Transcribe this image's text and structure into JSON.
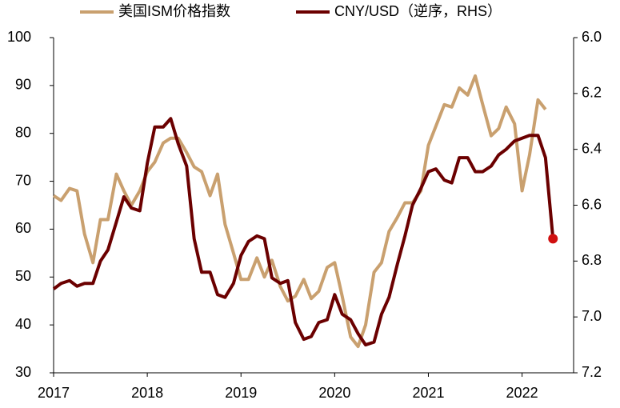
{
  "chart_data": {
    "type": "line",
    "x": [
      2017.0,
      2017.08,
      2017.17,
      2017.25,
      2017.33,
      2017.42,
      2017.5,
      2017.58,
      2017.67,
      2017.75,
      2017.83,
      2017.92,
      2018.0,
      2018.08,
      2018.17,
      2018.25,
      2018.33,
      2018.42,
      2018.5,
      2018.58,
      2018.67,
      2018.75,
      2018.83,
      2018.92,
      2019.0,
      2019.08,
      2019.17,
      2019.25,
      2019.33,
      2019.42,
      2019.5,
      2019.58,
      2019.67,
      2019.75,
      2019.83,
      2019.92,
      2020.0,
      2020.08,
      2020.17,
      2020.25,
      2020.33,
      2020.42,
      2020.5,
      2020.58,
      2020.67,
      2020.75,
      2020.83,
      2020.92,
      2021.0,
      2021.08,
      2021.17,
      2021.25,
      2021.33,
      2021.42,
      2021.5,
      2021.58,
      2021.67,
      2021.75,
      2021.83,
      2021.92,
      2022.0,
      2022.08,
      2022.17,
      2022.25,
      2022.33
    ],
    "xlim": [
      2017,
      2022.55
    ],
    "xticks": [
      2017,
      2018,
      2019,
      2020,
      2021,
      2022
    ],
    "ylim": [
      30,
      100
    ],
    "yticks": [
      30,
      40,
      50,
      60,
      70,
      80,
      90,
      100
    ],
    "y2lim": [
      6.0,
      7.2
    ],
    "y2_inverted": true,
    "y2ticks": [
      {
        "value": 6.0,
        "label": "6.0"
      },
      {
        "value": 6.2,
        "label": "6.2"
      },
      {
        "value": 6.4,
        "label": "6.4"
      },
      {
        "value": 6.6,
        "label": "6.6"
      },
      {
        "value": 6.8,
        "label": "6.8"
      },
      {
        "value": 7.0,
        "label": "7.0"
      },
      {
        "value": 7.2,
        "label": "7.2"
      }
    ],
    "legend": "top",
    "series": [
      {
        "name": "美国ISM价格指数",
        "color": "#c9a06f",
        "values": [
          67,
          66,
          68.5,
          68,
          59,
          53,
          62,
          62,
          71.5,
          68,
          65,
          68,
          72,
          74,
          78,
          79,
          79,
          76,
          73,
          72,
          67,
          71.5,
          61,
          55,
          49.5,
          49.5,
          54,
          50,
          53.5,
          48,
          45,
          46,
          49.5,
          45.5,
          47,
          52,
          53,
          46,
          37.5,
          35.5,
          40,
          51,
          53,
          59.5,
          62.5,
          65.5,
          65.5,
          68,
          77.5,
          81.5,
          86,
          85.5,
          89.5,
          88,
          92,
          86,
          79.5,
          81,
          85.5,
          82,
          68,
          75.5,
          87,
          85,
          null
        ]
      },
      {
        "name": "CNY/USD（逆序，RHS）",
        "color": "#6b0000",
        "axis": "y2",
        "last_point_color": "#d01010",
        "values": [
          6.9,
          6.88,
          6.87,
          6.89,
          6.88,
          6.88,
          6.8,
          6.76,
          6.66,
          6.57,
          6.61,
          6.62,
          6.45,
          6.32,
          6.32,
          6.29,
          6.38,
          6.46,
          6.72,
          6.84,
          6.84,
          6.92,
          6.93,
          6.88,
          6.78,
          6.73,
          6.71,
          6.72,
          6.86,
          6.88,
          6.87,
          7.02,
          7.08,
          7.07,
          7.02,
          7.01,
          6.92,
          6.99,
          7.01,
          7.06,
          7.1,
          7.09,
          6.99,
          6.93,
          6.81,
          6.71,
          6.6,
          6.54,
          6.48,
          6.47,
          6.51,
          6.52,
          6.43,
          6.43,
          6.48,
          6.48,
          6.46,
          6.42,
          6.4,
          6.37,
          6.36,
          6.35,
          6.35,
          6.43,
          6.72
        ]
      }
    ]
  }
}
